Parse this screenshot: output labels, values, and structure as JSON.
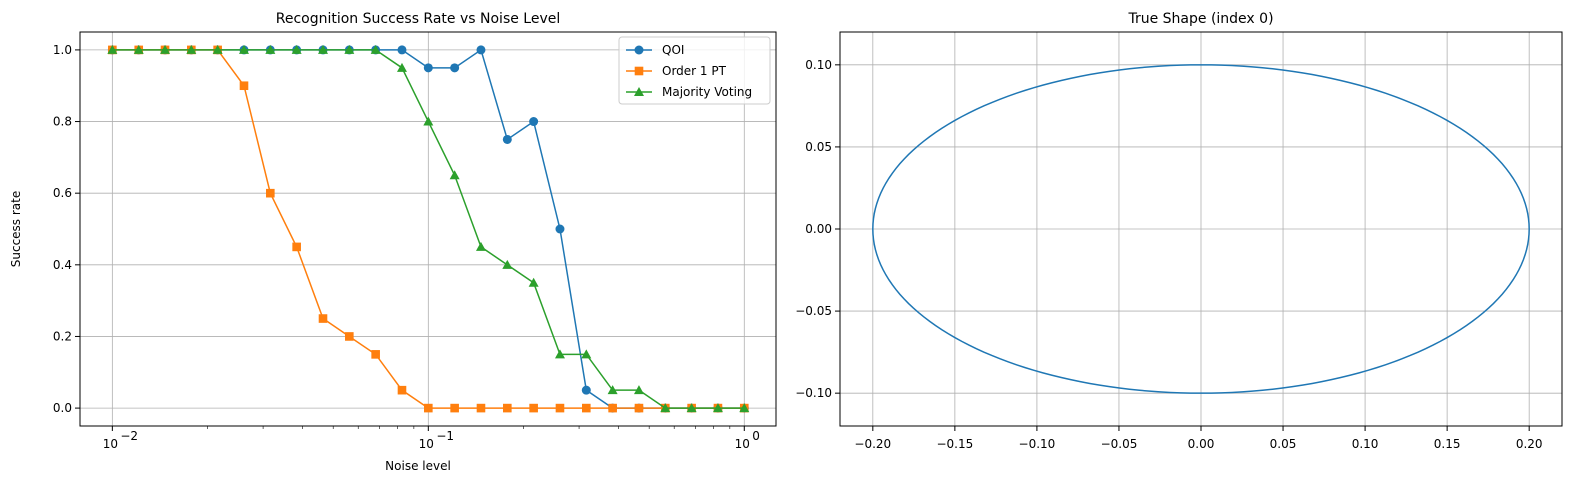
{
  "chart_data": [
    {
      "type": "line",
      "title": "Recognition Success Rate vs Noise Level",
      "xlabel": "Noise level",
      "ylabel": "Success rate",
      "xscale": "log",
      "xlim": [
        0.0079,
        1.26
      ],
      "ylim": [
        -0.05,
        1.05
      ],
      "grid": true,
      "legend": "top-right",
      "x": [
        0.01,
        0.01212,
        0.01468,
        0.01778,
        0.02154,
        0.0261,
        0.03162,
        0.03831,
        0.04642,
        0.05623,
        0.06813,
        0.08254,
        0.1,
        0.12115,
        0.14678,
        0.17783,
        0.21544,
        0.26102,
        0.31623,
        0.38312,
        0.46416,
        0.56234,
        0.68129,
        0.8254,
        1.0
      ],
      "xtick_values": [
        0.01,
        0.1,
        1
      ],
      "xtick_labels": [
        "10",
        "10",
        "10"
      ],
      "xtick_exponents": [
        "−2",
        "−1",
        "0"
      ],
      "ytick_values": [
        0,
        0.2,
        0.4,
        0.6,
        0.8,
        1.0
      ],
      "ytick_labels": [
        "0.0",
        "0.2",
        "0.4",
        "0.6",
        "0.8",
        "1.0"
      ],
      "series": [
        {
          "name": "QOI",
          "color": "#1f77b4",
          "marker": "circle",
          "values": [
            1,
            1,
            1,
            1,
            1,
            1,
            1,
            1,
            1,
            1,
            1,
            1,
            0.95,
            0.95,
            1,
            0.75,
            0.8,
            0.5,
            0.05,
            0,
            0,
            0,
            0,
            0,
            0
          ]
        },
        {
          "name": "Order 1 PT",
          "color": "#ff7f0e",
          "marker": "square",
          "values": [
            1,
            1,
            1,
            1,
            1,
            0.9,
            0.6,
            0.45,
            0.25,
            0.2,
            0.15,
            0.05,
            0,
            0,
            0,
            0,
            0,
            0,
            0,
            0,
            0,
            0,
            0,
            0,
            0
          ]
        },
        {
          "name": "Majority Voting",
          "color": "#2ca02c",
          "marker": "triangle",
          "values": [
            1,
            1,
            1,
            1,
            1,
            1,
            1,
            1,
            1,
            1,
            1,
            0.95,
            0.8,
            0.65,
            0.45,
            0.4,
            0.35,
            0.15,
            0.15,
            0.05,
            0.05,
            0,
            0,
            0,
            0
          ]
        }
      ]
    },
    {
      "type": "line",
      "title": "True Shape (index 0)",
      "xlabel": "",
      "ylabel": "",
      "shape": "ellipse",
      "center": [
        0,
        0
      ],
      "semi_axes": [
        0.2,
        0.1
      ],
      "color": "#1f77b4",
      "xlim": [
        -0.22,
        0.22
      ],
      "ylim": [
        -0.12,
        0.12
      ],
      "grid": true,
      "xtick_values": [
        -0.2,
        -0.15,
        -0.1,
        -0.05,
        0,
        0.05,
        0.1,
        0.15,
        0.2
      ],
      "xtick_labels": [
        "−0.20",
        "−0.15",
        "−0.10",
        "−0.05",
        "0.00",
        "0.05",
        "0.10",
        "0.15",
        "0.20"
      ],
      "ytick_values": [
        -0.1,
        -0.05,
        0,
        0.05,
        0.1
      ],
      "ytick_labels": [
        "−0.10",
        "−0.05",
        "0.00",
        "0.05",
        "0.10"
      ]
    }
  ]
}
